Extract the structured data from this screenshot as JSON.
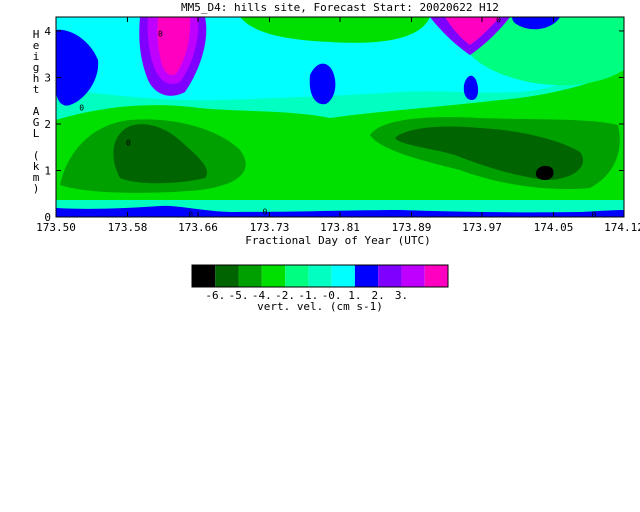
{
  "chart_data": {
    "type": "heatmap",
    "title": "MM5_D4: hills site,  Forecast Start: 20020622 H12",
    "xlabel": "Fractional Day of Year (UTC)",
    "ylabel": "Height AGL (km)",
    "xlim": [
      173.5,
      174.12
    ],
    "ylim": [
      0,
      4.3
    ],
    "x_ticks": [
      "173.50",
      "173.58",
      "173.66",
      "173.73",
      "173.81",
      "173.89",
      "173.97",
      "174.05",
      "174.12"
    ],
    "x_tick_values": [
      173.5,
      173.578,
      173.655,
      173.733,
      173.81,
      173.888,
      173.965,
      174.043,
      174.12
    ],
    "y_ticks": [
      "0",
      "1",
      "2",
      "3",
      "4"
    ],
    "y_tick_values": [
      0,
      1,
      2,
      3,
      4
    ],
    "colorbar": {
      "label": "vert. vel. (cm s-1)",
      "tick_labels": [
        "-6.",
        "-5.",
        "-4.",
        "-2.",
        "-1.",
        "-0.",
        "1.",
        "2.",
        "3."
      ],
      "colors": [
        "#000000",
        "#006400",
        "#00a000",
        "#00e000",
        "#00ff80",
        "#00ffc0",
        "#00ffff",
        "#0000ff",
        "#8000ff",
        "#c000ff",
        "#ff00c0"
      ]
    },
    "levels": [
      -6,
      -5,
      -4,
      -2,
      -1,
      0,
      1,
      2,
      3
    ],
    "contour_labels": [
      "0",
      "0",
      "0",
      "0",
      "0",
      "0",
      "0"
    ],
    "regions": [
      {
        "name": "blue-surface-layer",
        "level": "-0.",
        "x_range": [
          173.5,
          174.12
        ],
        "y_range": [
          0,
          0.2
        ]
      },
      {
        "name": "dark-green-core-west",
        "level": "-6.",
        "x_range": [
          173.57,
          173.65
        ],
        "y_range": [
          0.5,
          1.8
        ]
      },
      {
        "name": "dark-green-band-east",
        "level": "-5.",
        "x_range": [
          173.88,
          174.1
        ],
        "y_range": [
          0.7,
          1.8
        ]
      },
      {
        "name": "black-core-east",
        "level": "-6.",
        "x_range": [
          174.03,
          174.05
        ],
        "y_range": [
          0.8,
          1.1
        ]
      },
      {
        "name": "magenta-updraft-west",
        "level": "3.",
        "x_range": [
          173.61,
          173.65
        ],
        "y_range": [
          3.0,
          4.3
        ]
      },
      {
        "name": "magenta-updraft-east",
        "level": "3.",
        "x_range": [
          173.93,
          173.98
        ],
        "y_range": [
          3.8,
          4.3
        ]
      },
      {
        "name": "blue-cell-north-west",
        "level": "1.",
        "x_range": [
          173.5,
          173.56
        ],
        "y_range": [
          2.5,
          4.3
        ]
      },
      {
        "name": "blue-cell-mid",
        "level": "1.",
        "x_range": [
          173.78,
          173.82
        ],
        "y_range": [
          2.6,
          3.5
        ]
      }
    ]
  }
}
